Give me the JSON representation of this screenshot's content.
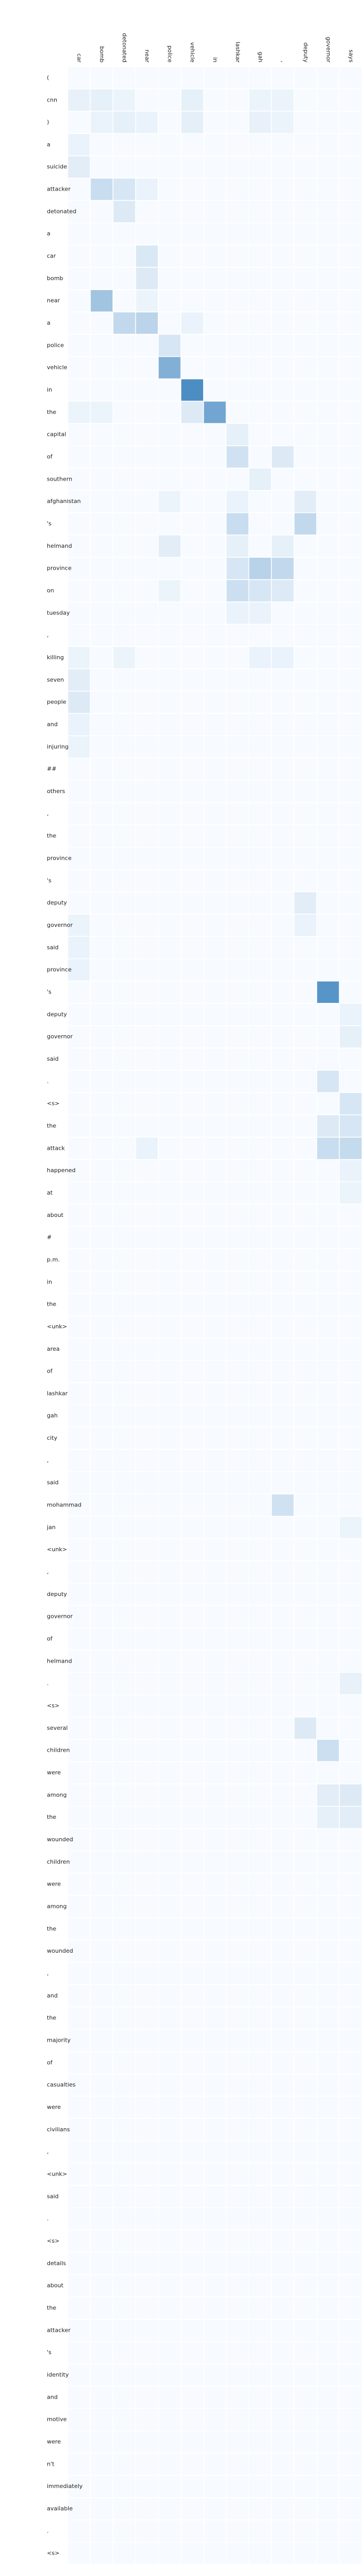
{
  "chart_data": {
    "type": "heatmap",
    "title": "",
    "xlabel": "",
    "ylabel": "",
    "x_labels": [
      "car",
      "bomb",
      "detonated",
      "near",
      "police",
      "vehicle",
      "in",
      "lashkar",
      "gah",
      ",",
      "deputy",
      "governor",
      "says"
    ],
    "y_labels": [
      "(",
      "cnn",
      ")",
      "a",
      "suicide",
      "attacker",
      "detonated",
      "a",
      "car",
      "bomb",
      "near",
      "a",
      "police",
      "vehicle",
      "in",
      "the",
      "capital",
      "of",
      "southern",
      "afghanistan",
      "'s",
      "helmand",
      "province",
      "on",
      "tuesday",
      ",",
      "killing",
      "seven",
      "people",
      "and",
      "injuring",
      "##",
      "others",
      ",",
      "the",
      "province",
      "'s",
      "deputy",
      "governor",
      "said",
      "province",
      "'s",
      "deputy",
      "governor",
      "said",
      ".",
      "<s>",
      "the",
      "attack",
      "happened",
      "at",
      "about",
      "#",
      "p.m.",
      "in",
      "the",
      "<unk>",
      "area",
      "of",
      "lashkar",
      "gah",
      "city",
      ",",
      "said",
      "mohammad",
      "jan",
      "<unk>",
      ",",
      "deputy",
      "governor",
      "of",
      "helmand",
      ".",
      "<s>",
      "several",
      "children",
      "were",
      "among",
      "the",
      "wounded",
      "children",
      "were",
      "among",
      "the",
      "wounded",
      ",",
      "and",
      "the",
      "majority",
      "of",
      "casualties",
      "were",
      "civilians",
      ",",
      "<unk>",
      "said",
      ".",
      "<s>",
      "details",
      "about",
      "the",
      "attacker",
      "'s",
      "identity",
      "and",
      "motive",
      "were",
      "n't",
      "immediately",
      "available",
      ".",
      "<s>"
    ],
    "cells": [
      [
        1,
        0,
        0.07
      ],
      [
        1,
        1,
        0.08
      ],
      [
        1,
        2,
        0.05
      ],
      [
        1,
        5,
        0.08
      ],
      [
        1,
        8,
        0.05
      ],
      [
        1,
        9,
        0.05
      ],
      [
        2,
        1,
        0.06
      ],
      [
        2,
        2,
        0.08
      ],
      [
        2,
        3,
        0.06
      ],
      [
        2,
        5,
        0.09
      ],
      [
        2,
        8,
        0.07
      ],
      [
        2,
        9,
        0.05
      ],
      [
        3,
        0,
        0.06
      ],
      [
        4,
        0,
        0.1
      ],
      [
        5,
        1,
        0.22
      ],
      [
        5,
        2,
        0.15
      ],
      [
        5,
        3,
        0.06
      ],
      [
        6,
        2,
        0.12
      ],
      [
        8,
        3,
        0.14
      ],
      [
        9,
        3,
        0.12
      ],
      [
        10,
        1,
        0.4
      ],
      [
        10,
        3,
        0.05
      ],
      [
        11,
        2,
        0.25
      ],
      [
        11,
        3,
        0.28
      ],
      [
        11,
        5,
        0.06
      ],
      [
        12,
        4,
        0.15
      ],
      [
        13,
        4,
        0.55
      ],
      [
        14,
        5,
        0.8
      ],
      [
        15,
        0,
        0.05
      ],
      [
        15,
        1,
        0.05
      ],
      [
        15,
        5,
        0.12
      ],
      [
        15,
        6,
        0.62
      ],
      [
        16,
        7,
        0.08
      ],
      [
        17,
        7,
        0.18
      ],
      [
        17,
        9,
        0.12
      ],
      [
        18,
        8,
        0.08
      ],
      [
        19,
        4,
        0.05
      ],
      [
        19,
        7,
        0.06
      ],
      [
        19,
        10,
        0.1
      ],
      [
        20,
        7,
        0.22
      ],
      [
        20,
        10,
        0.25
      ],
      [
        21,
        4,
        0.1
      ],
      [
        21,
        7,
        0.08
      ],
      [
        21,
        9,
        0.08
      ],
      [
        22,
        7,
        0.15
      ],
      [
        22,
        8,
        0.3
      ],
      [
        22,
        9,
        0.25
      ],
      [
        23,
        4,
        0.05
      ],
      [
        23,
        7,
        0.2
      ],
      [
        23,
        8,
        0.15
      ],
      [
        23,
        9,
        0.12
      ],
      [
        24,
        7,
        0.06
      ],
      [
        24,
        8,
        0.06
      ],
      [
        26,
        0,
        0.05
      ],
      [
        26,
        2,
        0.05
      ],
      [
        26,
        8,
        0.06
      ],
      [
        26,
        9,
        0.06
      ],
      [
        27,
        0,
        0.1
      ],
      [
        28,
        0,
        0.12
      ],
      [
        29,
        0,
        0.06
      ],
      [
        30,
        0,
        0.05
      ],
      [
        37,
        10,
        0.1
      ],
      [
        38,
        0,
        0.05
      ],
      [
        38,
        10,
        0.06
      ],
      [
        39,
        0,
        0.06
      ],
      [
        40,
        0,
        0.06
      ],
      [
        41,
        11,
        0.75
      ],
      [
        42,
        12,
        0.06
      ],
      [
        43,
        12,
        0.08
      ],
      [
        45,
        11,
        0.15
      ],
      [
        46,
        12,
        0.15
      ],
      [
        47,
        11,
        0.12
      ],
      [
        47,
        12,
        0.15
      ],
      [
        48,
        3,
        0.06
      ],
      [
        48,
        11,
        0.22
      ],
      [
        48,
        12,
        0.24
      ],
      [
        49,
        12,
        0.06
      ],
      [
        50,
        12,
        0.05
      ],
      [
        64,
        9,
        0.18
      ],
      [
        65,
        12,
        0.05
      ],
      [
        72,
        12,
        0.07
      ],
      [
        74,
        10,
        0.12
      ],
      [
        75,
        11,
        0.2
      ],
      [
        77,
        11,
        0.1
      ],
      [
        77,
        12,
        0.12
      ],
      [
        78,
        11,
        0.08
      ],
      [
        78,
        12,
        0.1
      ]
    ],
    "color_min": "#f7fbff",
    "color_max": "#2171b5"
  }
}
